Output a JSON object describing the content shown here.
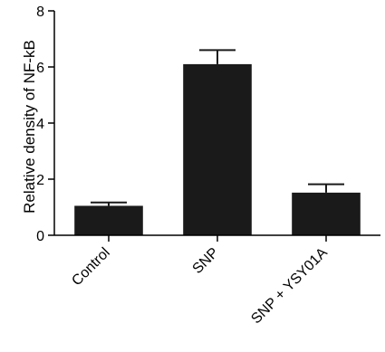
{
  "chart_data": {
    "type": "bar",
    "categories": [
      "Control",
      "SNP",
      "SNP + YSY01A"
    ],
    "values": [
      1.05,
      6.1,
      1.52
    ],
    "errors": [
      0.12,
      0.5,
      0.3
    ],
    "title": "",
    "xlabel": "",
    "ylabel": "Relative density of NF-kB",
    "ylim": [
      0,
      8
    ],
    "yticks": [
      0,
      2,
      4,
      6,
      8
    ],
    "grid": false,
    "colors": {
      "bar": "#1a1a1a",
      "axis": "#000000"
    }
  }
}
